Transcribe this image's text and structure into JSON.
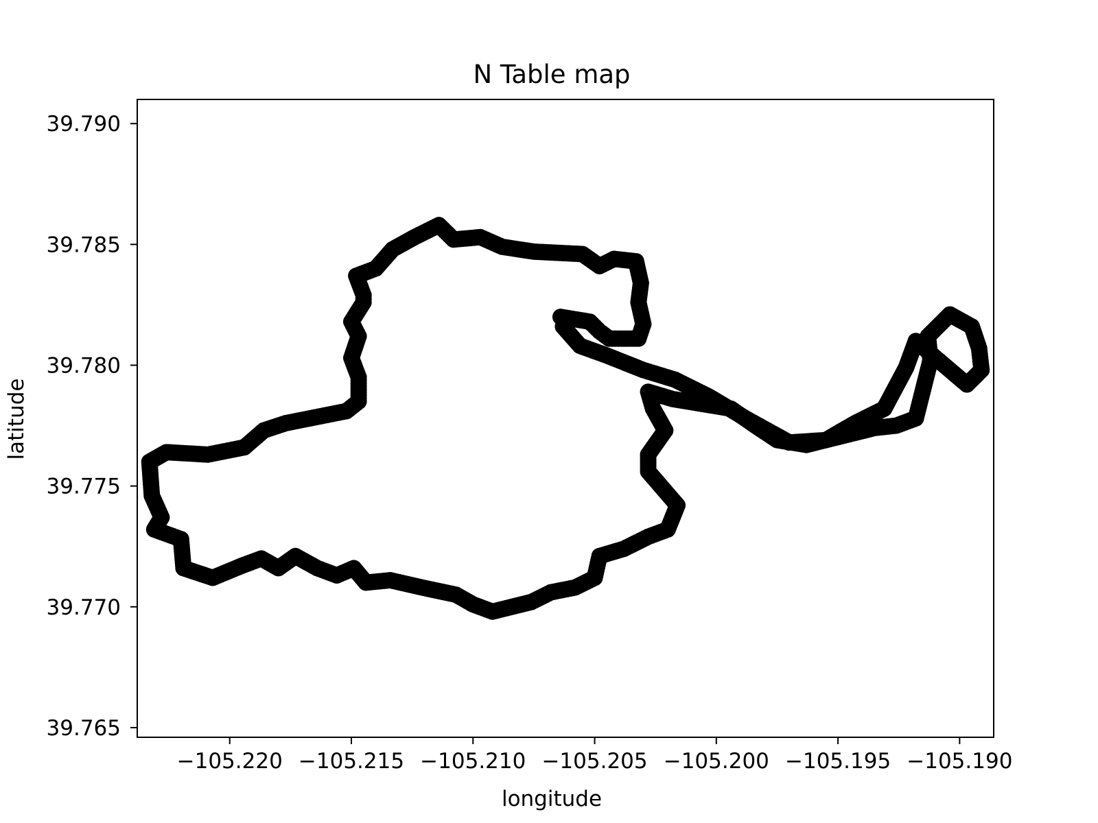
{
  "chart_data": {
    "type": "scatter",
    "title": "N Table map",
    "xlabel": "longitude",
    "ylabel": "latitude",
    "xlim": [
      -105.2238,
      -105.1886
    ],
    "ylim": [
      39.7646,
      39.791
    ],
    "x_ticks": [
      -105.22,
      -105.215,
      -105.21,
      -105.205,
      -105.2,
      -105.195,
      -105.19
    ],
    "x_tick_labels": [
      "−105.220",
      "−105.215",
      "−105.210",
      "−105.205",
      "−105.200",
      "−105.195",
      "−105.190"
    ],
    "y_ticks": [
      39.765,
      39.77,
      39.775,
      39.78,
      39.785,
      39.79
    ],
    "y_tick_labels": [
      "39.765",
      "39.770",
      "39.775",
      "39.780",
      "39.785",
      "39.790"
    ],
    "grid": false,
    "series": [
      {
        "color": "#000000",
        "points": [
          [
            -105.2064,
            39.782
          ],
          [
            -105.2058,
            39.7819
          ],
          [
            -105.2052,
            39.7818
          ],
          [
            -105.2048,
            39.7814
          ],
          [
            -105.2044,
            39.7811
          ],
          [
            -105.2039,
            39.7811
          ],
          [
            -105.2032,
            39.7811
          ],
          [
            -105.203,
            39.7817
          ],
          [
            -105.2032,
            39.7826
          ],
          [
            -105.2031,
            39.7834
          ],
          [
            -105.2033,
            39.7843
          ],
          [
            -105.2042,
            39.7844
          ],
          [
            -105.2048,
            39.7841
          ],
          [
            -105.2055,
            39.7846
          ],
          [
            -105.2075,
            39.7847
          ],
          [
            -105.2088,
            39.7849
          ],
          [
            -105.2097,
            39.7853
          ],
          [
            -105.2108,
            39.7852
          ],
          [
            -105.2114,
            39.7858
          ],
          [
            -105.2124,
            39.7853
          ],
          [
            -105.2133,
            39.7848
          ],
          [
            -105.214,
            39.784
          ],
          [
            -105.2148,
            39.7837
          ],
          [
            -105.2145,
            39.7829
          ],
          [
            -105.2145,
            39.7826
          ],
          [
            -105.215,
            39.7818
          ],
          [
            -105.2147,
            39.7812
          ],
          [
            -105.215,
            39.7803
          ],
          [
            -105.2147,
            39.7795
          ],
          [
            -105.2147,
            39.7785
          ],
          [
            -105.2152,
            39.7781
          ],
          [
            -105.2167,
            39.7778
          ],
          [
            -105.2177,
            39.7776
          ],
          [
            -105.2186,
            39.7773
          ],
          [
            -105.2194,
            39.7766
          ],
          [
            -105.2209,
            39.7763
          ],
          [
            -105.2226,
            39.7764
          ],
          [
            -105.2233,
            39.776
          ],
          [
            -105.2232,
            39.7746
          ],
          [
            -105.2228,
            39.7737
          ],
          [
            -105.2231,
            39.7732
          ],
          [
            -105.222,
            39.7728
          ],
          [
            -105.2219,
            39.7716
          ],
          [
            -105.2207,
            39.7712
          ],
          [
            -105.2195,
            39.7717
          ],
          [
            -105.2187,
            39.772
          ],
          [
            -105.218,
            39.7716
          ],
          [
            -105.2173,
            39.7721
          ],
          [
            -105.2164,
            39.7716
          ],
          [
            -105.2156,
            39.7713
          ],
          [
            -105.2149,
            39.7716
          ],
          [
            -105.2144,
            39.771
          ],
          [
            -105.2134,
            39.7711
          ],
          [
            -105.2121,
            39.7708
          ],
          [
            -105.2107,
            39.7705
          ],
          [
            -105.21,
            39.7701
          ],
          [
            -105.2092,
            39.7698
          ],
          [
            -105.2084,
            39.77
          ],
          [
            -105.2076,
            39.7702
          ],
          [
            -105.2068,
            39.7706
          ],
          [
            -105.2058,
            39.7708
          ],
          [
            -105.205,
            39.7712
          ],
          [
            -105.2048,
            39.7721
          ],
          [
            -105.2038,
            39.7724
          ],
          [
            -105.2028,
            39.7729
          ],
          [
            -105.202,
            39.7732
          ],
          [
            -105.2016,
            39.7742
          ],
          [
            -105.2022,
            39.7749
          ],
          [
            -105.2028,
            39.7756
          ],
          [
            -105.2028,
            39.7763
          ],
          [
            -105.2021,
            39.7773
          ],
          [
            -105.2026,
            39.7782
          ],
          [
            -105.2028,
            39.7789
          ],
          [
            -105.2018,
            39.7786
          ],
          [
            -105.2006,
            39.7784
          ],
          [
            -105.1994,
            39.7782
          ],
          [
            -105.1984,
            39.7775
          ],
          [
            -105.1975,
            39.7769
          ],
          [
            -105.1963,
            39.7767
          ],
          [
            -105.1955,
            39.7769
          ],
          [
            -105.1943,
            39.7772
          ],
          [
            -105.1935,
            39.7774
          ],
          [
            -105.1926,
            39.7775
          ],
          [
            -105.1918,
            39.7778
          ],
          [
            -105.1915,
            39.779
          ],
          [
            -105.1912,
            39.7802
          ],
          [
            -105.1913,
            39.7812
          ],
          [
            -105.1904,
            39.7821
          ],
          [
            -105.1895,
            39.7816
          ],
          [
            -105.1892,
            39.7807
          ],
          [
            -105.1891,
            39.7798
          ],
          [
            -105.1897,
            39.7792
          ],
          [
            -105.1918,
            39.781
          ],
          [
            -105.1922,
            39.7799
          ],
          [
            -105.1931,
            39.7782
          ],
          [
            -105.1943,
            39.7776
          ],
          [
            -105.1955,
            39.7769
          ],
          [
            -105.197,
            39.7768
          ],
          [
            -105.1988,
            39.7778
          ],
          [
            -105.2003,
            39.7787
          ],
          [
            -105.2017,
            39.7794
          ],
          [
            -105.203,
            39.7798
          ],
          [
            -105.2045,
            39.7804
          ],
          [
            -105.2056,
            39.7808
          ],
          [
            -105.2063,
            39.7816
          ]
        ]
      }
    ]
  }
}
